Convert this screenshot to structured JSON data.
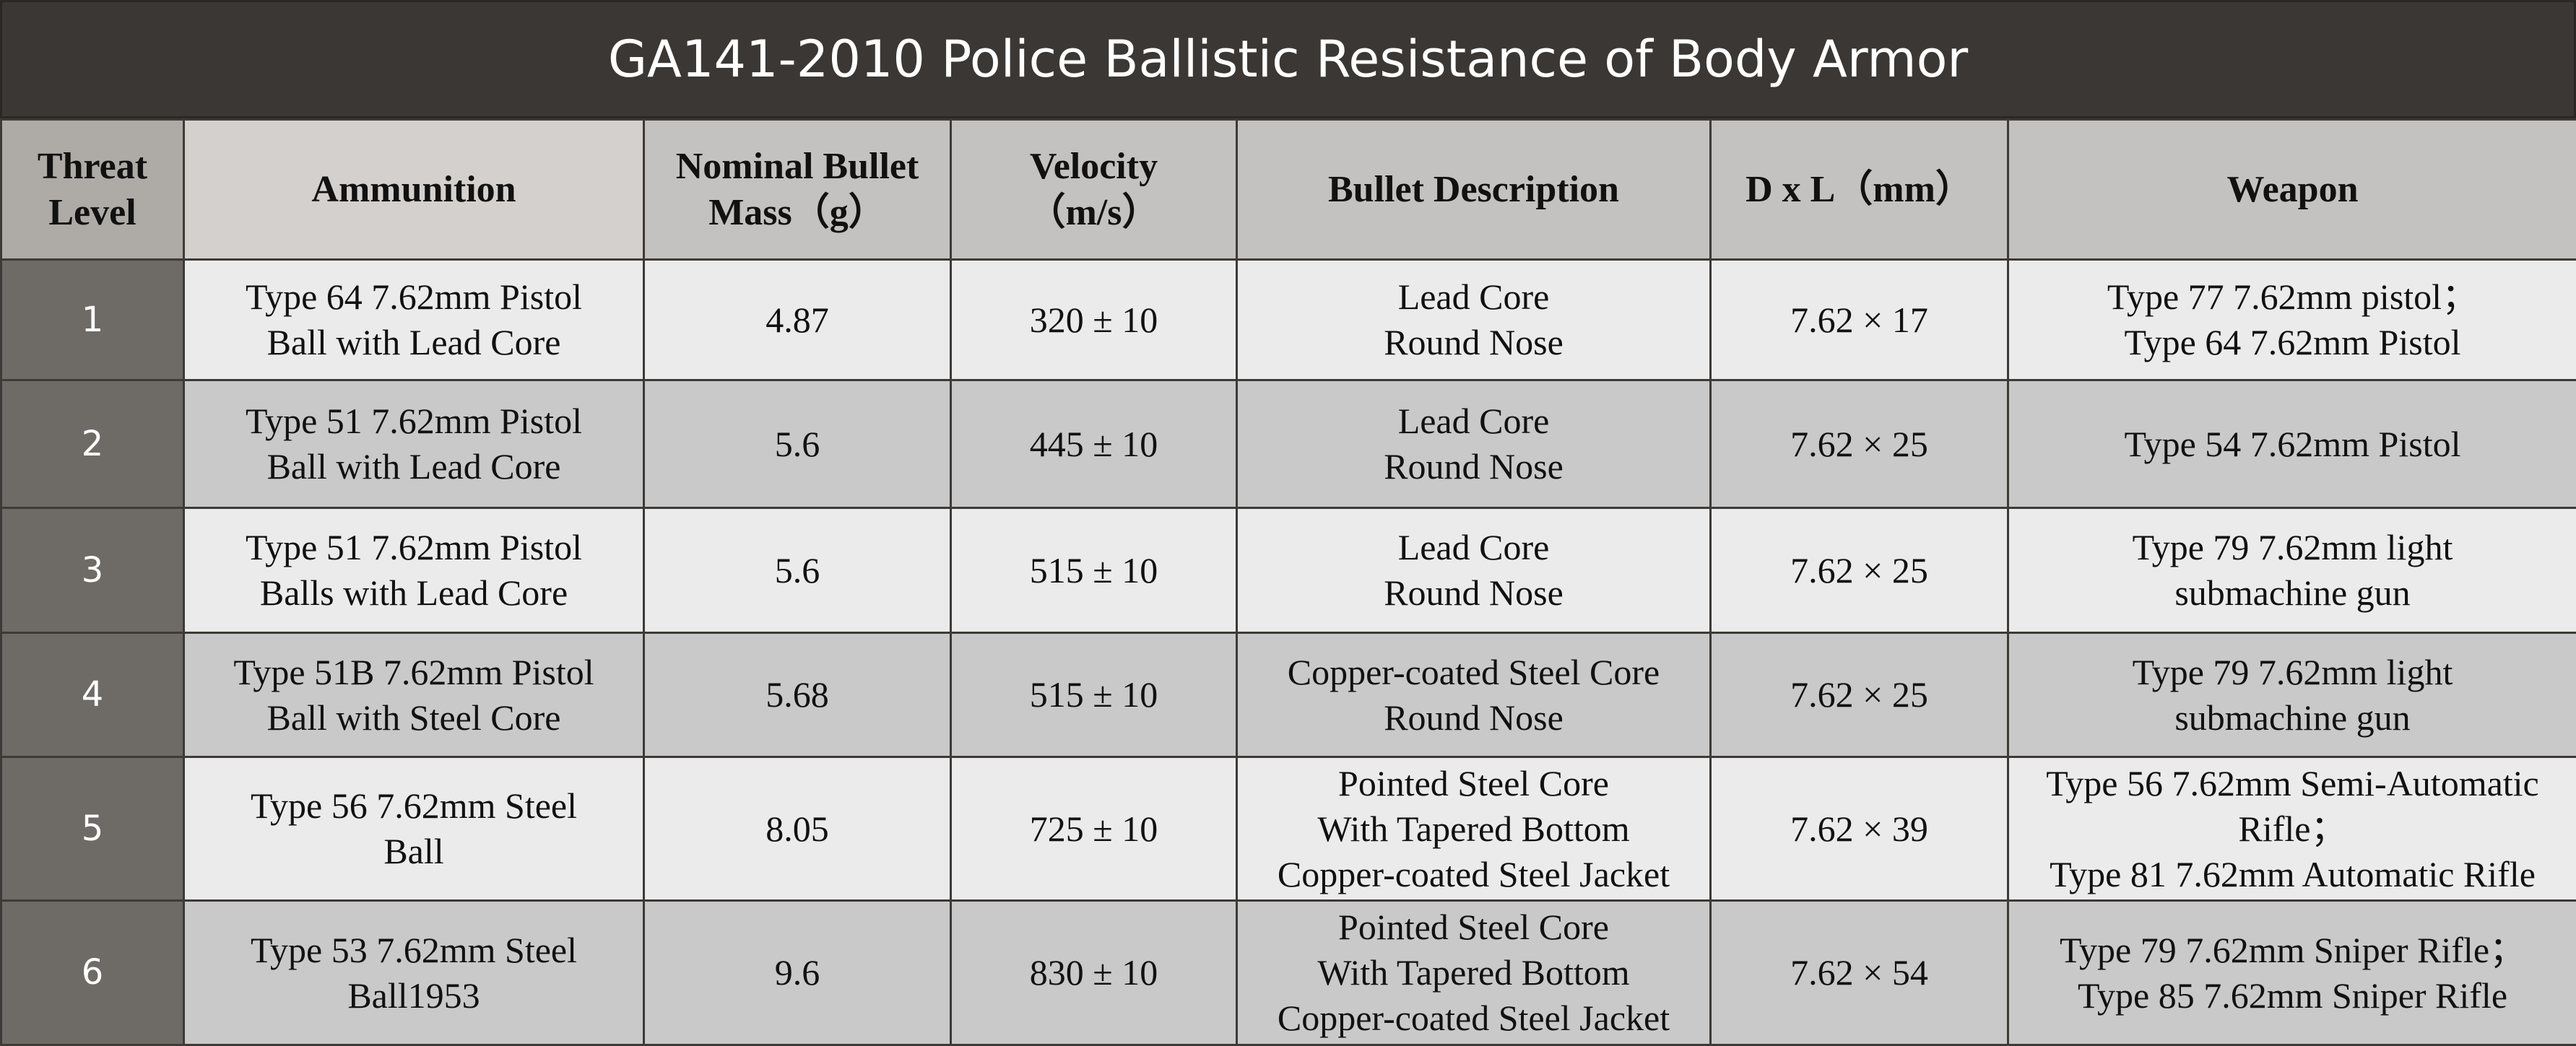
{
  "title": "GA141-2010 Police Ballistic Resistance of Body Armor",
  "headers": {
    "threat_level": [
      "Threat",
      "Level"
    ],
    "ammunition": [
      "Ammunition"
    ],
    "mass": [
      "Nominal Bullet",
      "Mass（g）"
    ],
    "velocity": [
      "Velocity",
      "（m/s）"
    ],
    "description": [
      "Bullet Description"
    ],
    "dimension": [
      "D x L（mm）"
    ],
    "weapon": [
      "Weapon"
    ]
  },
  "rows": [
    {
      "level": "1",
      "ammunition": [
        "Type 64 7.62mm Pistol",
        "Ball with Lead Core"
      ],
      "mass": "4.87",
      "velocity": "320 ± 10",
      "description": [
        "Lead Core",
        "Round Nose"
      ],
      "dimension": "7.62 × 17",
      "weapon": [
        "Type 77 7.62mm pistol；",
        "Type 64 7.62mm Pistol"
      ]
    },
    {
      "level": "2",
      "ammunition": [
        "Type 51 7.62mm Pistol",
        "Ball with Lead Core"
      ],
      "mass": "5.6",
      "velocity": "445 ± 10",
      "description": [
        "Lead Core",
        "Round Nose"
      ],
      "dimension": "7.62 × 25",
      "weapon": [
        "Type 54 7.62mm Pistol"
      ]
    },
    {
      "level": "3",
      "ammunition": [
        "Type 51 7.62mm Pistol",
        "Balls with Lead Core"
      ],
      "mass": "5.6",
      "velocity": "515 ± 10",
      "description": [
        "Lead Core",
        "Round Nose"
      ],
      "dimension": "7.62 × 25",
      "weapon": [
        "Type 79 7.62mm light",
        "submachine gun"
      ]
    },
    {
      "level": "4",
      "ammunition": [
        "Type 51B 7.62mm Pistol",
        "Ball with Steel Core"
      ],
      "mass": "5.68",
      "velocity": "515 ± 10",
      "description": [
        "Copper-coated Steel Core",
        "Round Nose"
      ],
      "dimension": "7.62 × 25",
      "weapon": [
        "Type 79 7.62mm light",
        "submachine gun"
      ]
    },
    {
      "level": "5",
      "ammunition": [
        "Type 56 7.62mm Steel",
        "Ball"
      ],
      "mass": "8.05",
      "velocity": "725 ± 10",
      "description": [
        "Pointed Steel Core",
        "With Tapered Bottom",
        "Copper-coated Steel Jacket"
      ],
      "dimension": "7.62 × 39",
      "weapon": [
        "Type 56 7.62mm Semi-Automatic",
        "Rifle；",
        "Type 81 7.62mm Automatic Rifle"
      ]
    },
    {
      "level": "6",
      "ammunition": [
        "Type 53 7.62mm Steel",
        "Ball1953"
      ],
      "mass": "9.6",
      "velocity": "830 ± 10",
      "description": [
        "Pointed Steel Core",
        "With Tapered Bottom",
        "Copper-coated Steel Jacket"
      ],
      "dimension": "7.62 × 54",
      "weapon": [
        "Type 79 7.62mm Sniper Rifle；",
        "Type 85 7.62mm Sniper Rifle"
      ]
    }
  ]
}
